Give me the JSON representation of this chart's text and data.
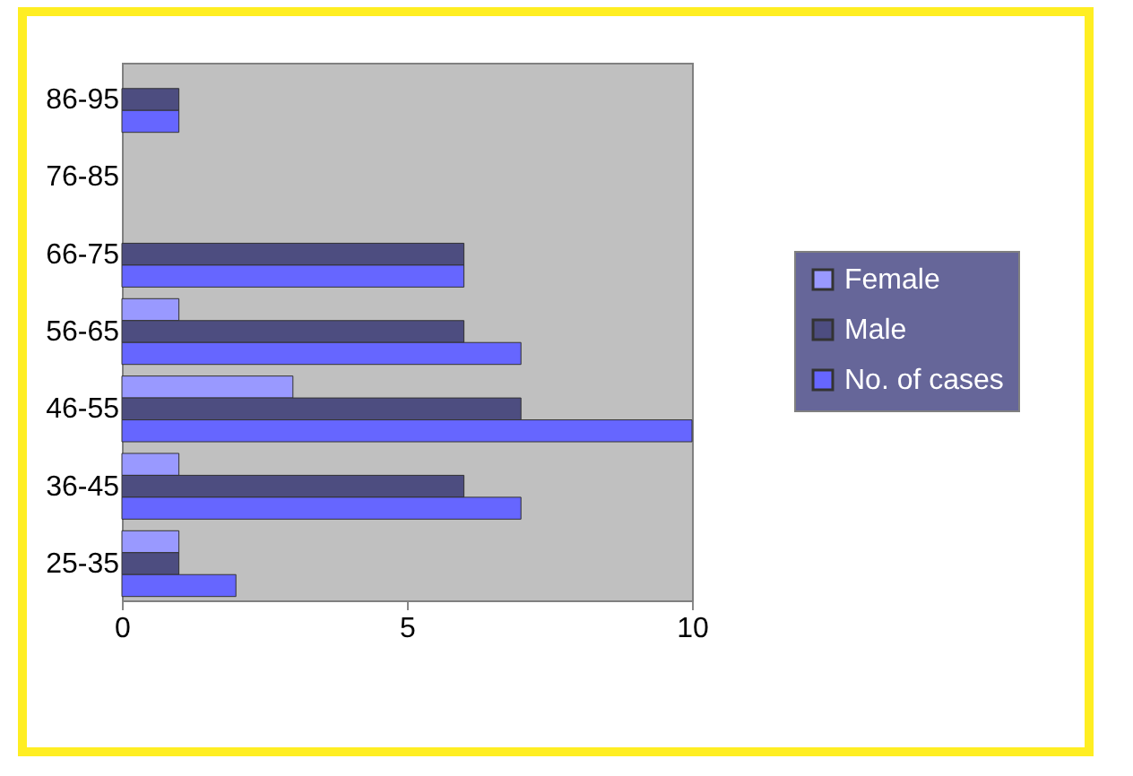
{
  "chart_data": {
    "type": "bar",
    "orientation": "horizontal",
    "categories": [
      "86-95",
      "76-85",
      "66-75",
      "56-65",
      "46-55",
      "36-45",
      "25-35"
    ],
    "series": [
      {
        "name": "Female",
        "color": "#9999ff",
        "values": [
          0,
          0,
          0,
          1,
          3,
          1,
          1
        ]
      },
      {
        "name": "Male",
        "color": "#4d4d80",
        "values": [
          1,
          0,
          6,
          6,
          7,
          6,
          1
        ]
      },
      {
        "name": "No. of cases",
        "color": "#6666ff",
        "values": [
          1,
          0,
          6,
          7,
          10,
          7,
          2
        ]
      }
    ],
    "xlim": [
      0,
      10
    ],
    "xticks": [
      0,
      5,
      10
    ],
    "grid": false,
    "legend": "right"
  }
}
